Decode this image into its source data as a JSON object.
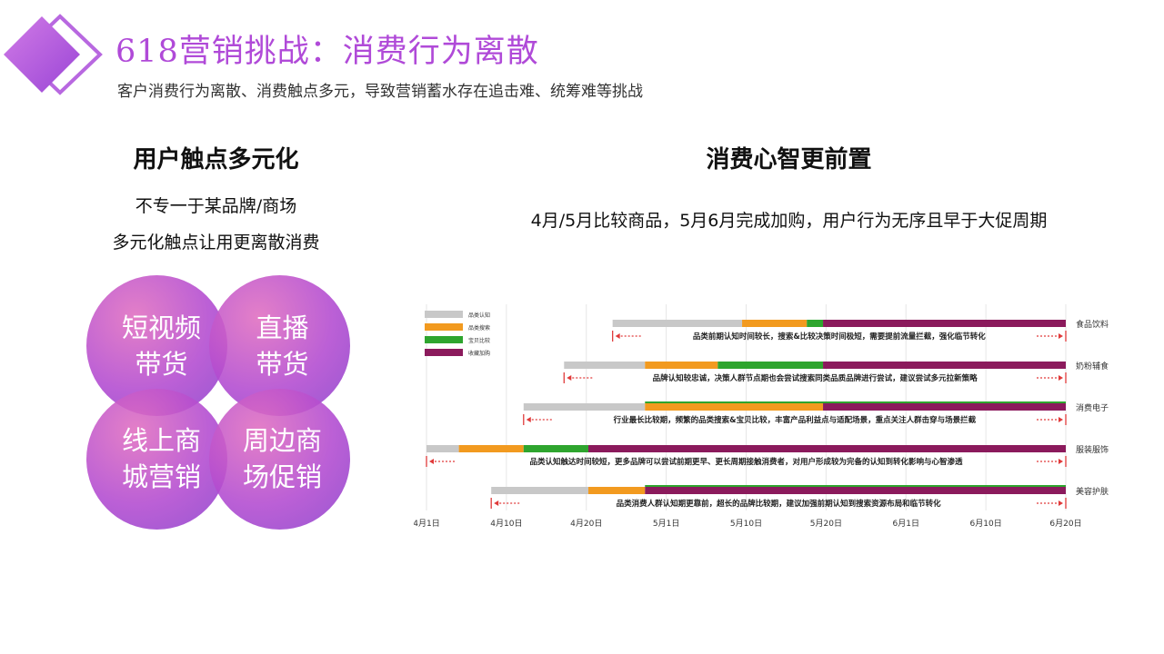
{
  "header": {
    "title": "618营销挑战：消费行为离散",
    "subtitle": "客户消费行为离散、消费触点多元，导致营销蓄水存在追击难、统筹难等挑战"
  },
  "left": {
    "heading": "用户触点多元化",
    "desc_line1": "不专一于某品牌/商场",
    "desc_line2": "多元化触点让用更离散消费",
    "circles": [
      {
        "line1": "短视频",
        "line2": "带货"
      },
      {
        "line1": "直播",
        "line2": "带货"
      },
      {
        "line1": "线上商",
        "line2": "城营销"
      },
      {
        "line1": "周边商",
        "line2": "场促销"
      }
    ]
  },
  "right": {
    "heading": "消费心智更前置",
    "desc": "4月/5月比较商品，5月6月完成加购，用户行为无序且早于大促周期"
  },
  "chart_data": {
    "type": "bar",
    "subtype": "stacked-horizontal-gantt",
    "x_ticks": [
      "4月1日",
      "4月10日",
      "4月20日",
      "5月1日",
      "5月10日",
      "5月20日",
      "6月1日",
      "6月10日",
      "6月20日"
    ],
    "legend": [
      "品类认知",
      "品类搜索",
      "宝贝比较",
      "收藏加购"
    ],
    "colors": {
      "品类认知": "#c8c8c8",
      "品类搜索": "#f29a1f",
      "宝贝比较": "#2ea52e",
      "收藏加购": "#8b1a5c"
    },
    "rows": [
      {
        "category": "食品饮料",
        "segments": [
          [
            24,
            40,
            "品类认知"
          ],
          [
            40,
            48,
            "品类搜索"
          ],
          [
            48,
            50,
            "宝贝比较"
          ],
          [
            50,
            80,
            "收藏加购"
          ]
        ],
        "annotation": "品类前期认知时间较长，搜索&比较决策时间极短，需要提前流量拦截，强化临节转化"
      },
      {
        "category": "奶粉辅食",
        "segments": [
          [
            18,
            28,
            "品类认知"
          ],
          [
            28,
            37,
            "品类搜索"
          ],
          [
            37,
            50,
            "宝贝比较"
          ],
          [
            50,
            80,
            "收藏加购"
          ]
        ],
        "annotation": "品牌认知较忠诚，决策人群节点期也会尝试搜索同类品质品牌进行尝试，建议尝试多元拉新策略"
      },
      {
        "category": "消费电子",
        "segments": [
          [
            13,
            28,
            "品类认知"
          ],
          [
            28,
            50,
            "品类搜索"
          ],
          [
            50,
            80,
            "收藏加购"
          ]
        ],
        "bonus_segment": [
          28,
          80,
          "宝贝比较"
        ],
        "annotation": "行业最长比较期，频繁的品类搜索&宝贝比较，丰富产品利益点与适配场景，重点关注人群击穿与场景拦截"
      },
      {
        "category": "服装服饰",
        "segments": [
          [
            1,
            5,
            "品类认知"
          ],
          [
            5,
            13,
            "品类搜索"
          ],
          [
            13,
            21,
            "宝贝比较"
          ],
          [
            21,
            80,
            "收藏加购"
          ]
        ],
        "annotation": "品类认知触达时间较短，更多品牌可以尝试前期更早、更长周期接触消费者，对用户形成较为完备的认知到转化影响与心智渗透"
      },
      {
        "category": "美容护肤",
        "segments": [
          [
            9,
            21,
            "品类认知"
          ],
          [
            21,
            28,
            "品类搜索"
          ],
          [
            28,
            80,
            "收藏加购"
          ]
        ],
        "bonus_segment": [
          28,
          80,
          "宝贝比较"
        ],
        "annotation": "品类消费人群认知期更靠前，超长的品牌比较期，建议加强前期认知到搜索资源布局和临节转化"
      }
    ]
  }
}
